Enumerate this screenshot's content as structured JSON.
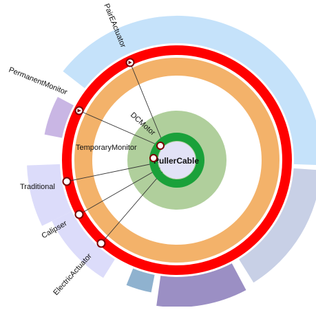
{
  "center": {
    "label": "PullerCable",
    "fill": "#e2e2f6",
    "ring": "#1aa13a",
    "glow": "#6fa84a"
  },
  "palette": {
    "red_ring": "#ff0000",
    "orange_ring": "#f3b26a",
    "line": "#333333",
    "marker_fill": "#ffffff",
    "marker_stroke": "#7a0000"
  },
  "outer_arcs": [
    {
      "name": "arc-light-blue",
      "color": "#c5e2fa"
    },
    {
      "name": "arc-grey-blue",
      "color": "#c8d0e6"
    },
    {
      "name": "arc-purple",
      "color": "#9b8fc4"
    },
    {
      "name": "arc-steel-blue",
      "color": "#8fb2cf"
    },
    {
      "name": "arc-lavender-low",
      "color": "#dcdcfa"
    },
    {
      "name": "arc-lavender",
      "color": "#dcdcfa"
    },
    {
      "name": "arc-violet",
      "color": "#c9b6e4"
    }
  ],
  "nodes": [
    {
      "label": "PairEActuator",
      "marker": "triangle"
    },
    {
      "label": "PermanentMonitor",
      "marker": "triangle"
    },
    {
      "label": "Traditional",
      "marker": "circle"
    },
    {
      "label": "Calipser",
      "marker": "circle"
    },
    {
      "label": "ElectricActuator",
      "marker": "circle"
    },
    {
      "label": "DCMotor",
      "marker": "circle"
    },
    {
      "label": "TemporaryMonitor",
      "marker": "circle"
    }
  ]
}
